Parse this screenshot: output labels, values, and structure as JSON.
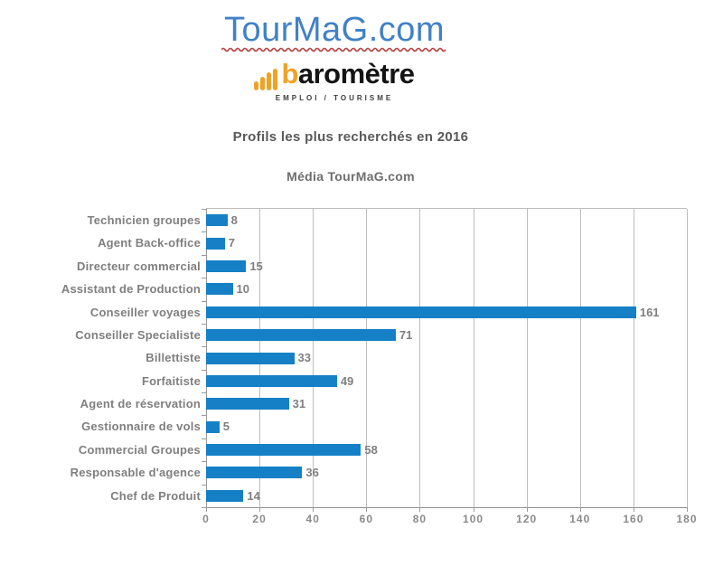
{
  "logo": {
    "brand": "TourMaG.com",
    "brand_color": "#4081c8",
    "underline_color": "#b5413f",
    "barometer_prefix_b": "b",
    "barometer_rest": "aromètre",
    "barometer_text_color": "#141414",
    "accent_orange": "#f0a227",
    "tagline": "EMPLOI / TOURISME"
  },
  "title": "Profils les plus recherchés en 2016",
  "subtitle": "Média TourMaG.com",
  "chart_data": {
    "type": "bar",
    "orientation": "horizontal",
    "title": "Profils les plus recherchés en 2016",
    "subtitle": "Média TourMaG.com",
    "categories": [
      "Technicien groupes",
      "Agent Back-office",
      "Directeur commercial",
      "Assistant de Production",
      "Conseiller voyages",
      "Conseiller Specialiste",
      "Billettiste",
      "Forfaitiste",
      "Agent de réservation",
      "Gestionnaire de vols",
      "Commercial Groupes",
      "Responsable d'agence",
      "Chef de Produit"
    ],
    "values": [
      8,
      7,
      15,
      10,
      161,
      71,
      33,
      49,
      31,
      5,
      58,
      36,
      14
    ],
    "xlim": [
      0,
      180
    ],
    "xticks": [
      0,
      20,
      40,
      60,
      80,
      100,
      120,
      140,
      160,
      180
    ],
    "grid": true,
    "legend": false,
    "value_labels": true,
    "bar_color": "#1580c6",
    "grid_color": "#bdbdbd",
    "label_color": "#7f7f7f"
  }
}
